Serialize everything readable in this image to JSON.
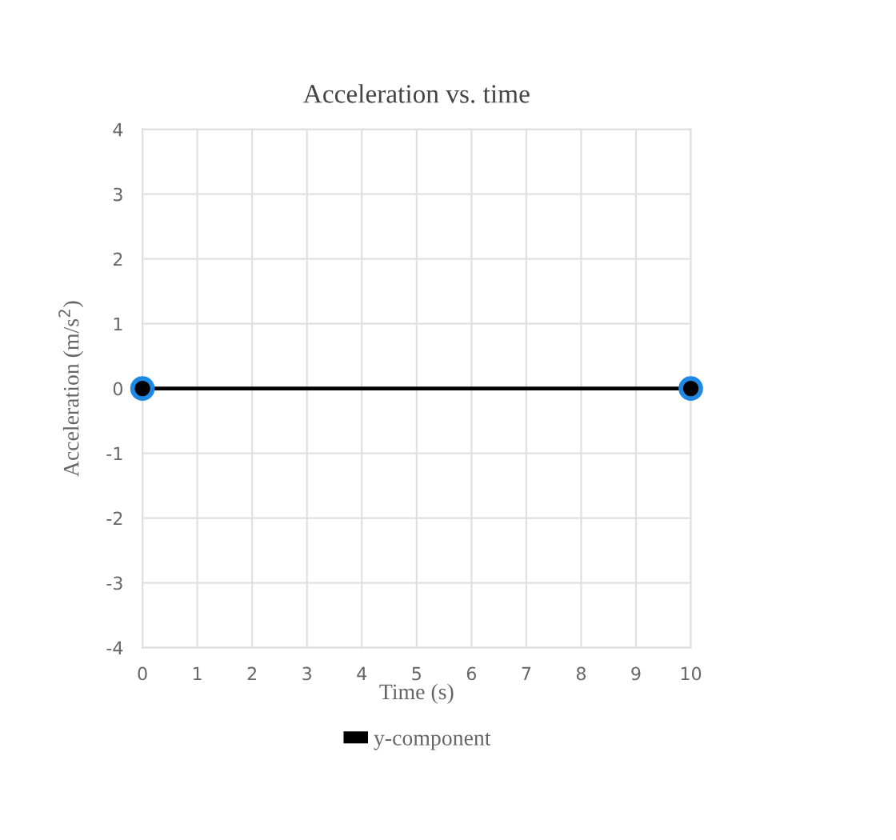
{
  "chart_data": {
    "type": "line",
    "title": "Acceleration vs. time",
    "xlabel": "Time (s)",
    "ylabel": "Acceleration (m/s$^{2}$)",
    "x": [
      0,
      10
    ],
    "series": [
      {
        "name": "y-component",
        "color": "#000000",
        "values": [
          0,
          0
        ]
      }
    ],
    "xlim": [
      0,
      10
    ],
    "xticks": [
      0,
      1,
      2,
      3,
      4,
      5,
      6,
      7,
      8,
      9,
      10
    ],
    "ylim": [
      -4,
      4
    ],
    "yticks": [
      -4,
      -3,
      -2,
      -1,
      0,
      1,
      2,
      3,
      4
    ],
    "grid": true,
    "legend": "bottom",
    "marker": "circle",
    "line_style": "solid"
  }
}
